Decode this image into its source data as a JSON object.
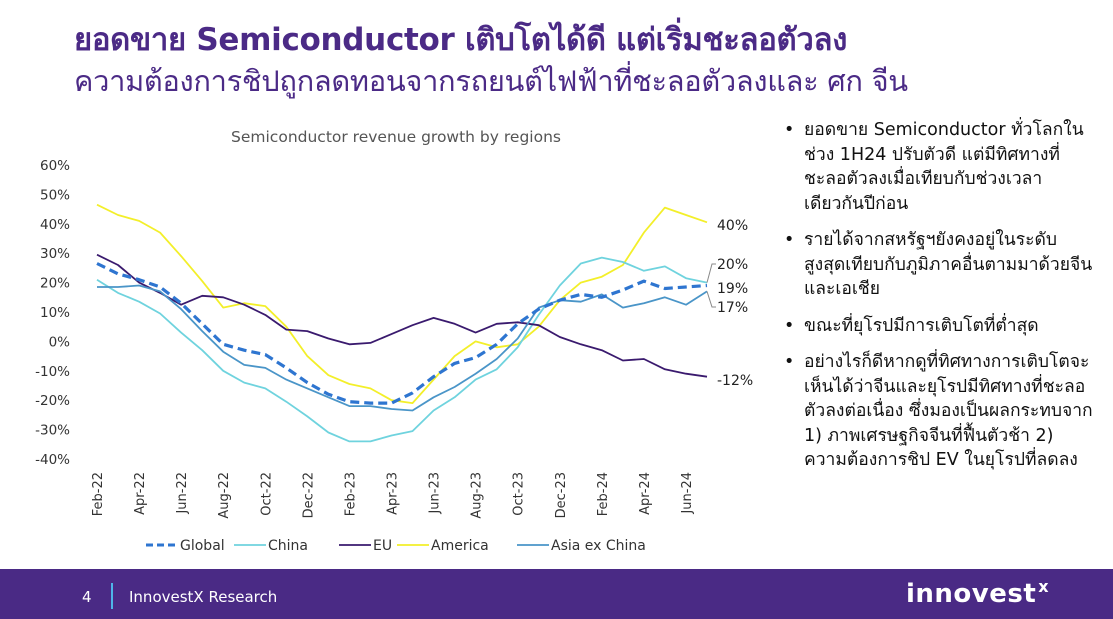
{
  "slide": {
    "title": "ยอดขาย Semiconductor เติบโตได้ดี แต่เริ่มชะลอตัวลง",
    "subtitle": "ความต้องการชิปถูกลดทอนจากรถยนต์ไฟฟ้าที่ชะลอตัวลงและ ศก จีน"
  },
  "bullets": [
    "ยอดขาย Semiconductor ทั่วโลกในช่วง 1H24 ปรับตัวดี แต่มีทิศทางที่ชะลอตัวลงเมื่อเทียบกับช่วงเวลาเดียวกันปีก่อน",
    "รายได้จากสหรัฐฯยังคงอยู่ในระดับสูงสุดเทียบกับภูมิภาคอื่นตามมาด้วยจีนและเอเชีย",
    "ขณะที่ยุโรปมีการเติบโตที่ต่ำสุด",
    "อย่างไรก็ดีหากดูที่ทิศทางการเติบโตจะเห็นได้ว่าจีนและยุโรปมีทิศทางที่ชะลอตัวลงต่อเนื่อง ซึ่งมองเป็นผลกระทบจาก 1) ภาพเศรษฐกิจจีนที่ฟื้นตัวช้า 2) ความต้องการชิป EV ในยุโรปที่ลดลง"
  ],
  "footer": {
    "page": "4",
    "brand": "InnovestX Research",
    "logo": "innovest",
    "logo_mark": "x"
  },
  "chart_data": {
    "type": "line",
    "title": "Semiconductor revenue growth by regions",
    "xlabel": "",
    "ylabel": "",
    "ylim": [
      -40,
      60
    ],
    "yticks": [
      -40,
      -30,
      -20,
      -10,
      0,
      10,
      20,
      30,
      40,
      50,
      60
    ],
    "ytick_labels": [
      "-40%",
      "-30%",
      "-20%",
      "-10%",
      "0%",
      "10%",
      "20%",
      "30%",
      "40%",
      "50%",
      "60%"
    ],
    "x": [
      "Feb-22",
      "Mar-22",
      "Apr-22",
      "May-22",
      "Jun-22",
      "Jul-22",
      "Aug-22",
      "Sep-22",
      "Oct-22",
      "Nov-22",
      "Dec-22",
      "Jan-23",
      "Feb-23",
      "Mar-23",
      "Apr-23",
      "May-23",
      "Jun-23",
      "Jul-23",
      "Aug-23",
      "Sep-23",
      "Oct-23",
      "Nov-23",
      "Dec-23",
      "Jan-24",
      "Feb-24",
      "Mar-24",
      "Apr-24",
      "May-24",
      "Jun-24",
      "Jul-24"
    ],
    "xtick_labels": [
      "Feb-22",
      "Apr-22",
      "Jun-22",
      "Aug-22",
      "Oct-22",
      "Dec-22",
      "Feb-23",
      "Apr-23",
      "Jun-23",
      "Aug-23",
      "Oct-23",
      "Dec-23",
      "Feb-24",
      "Apr-24",
      "Jun-24"
    ],
    "legend_position": "bottom",
    "grid": false,
    "series": [
      {
        "name": "Global",
        "color": "#2e75d0",
        "dashed": true,
        "values": [
          26.5,
          23,
          21,
          18.5,
          13,
          6,
          -1,
          -3,
          -4.5,
          -9,
          -14,
          -18,
          -20.5,
          -21,
          -21,
          -17.5,
          -12,
          -7.5,
          -5.5,
          -1,
          6,
          11,
          14,
          16,
          15,
          17.5,
          20.5,
          18,
          18.5,
          19
        ]
      },
      {
        "name": "China",
        "color": "#6fd3de",
        "dashed": false,
        "values": [
          21,
          16.5,
          13.5,
          9.5,
          3,
          -3,
          -10,
          -14,
          -16,
          -20.5,
          -25.5,
          -31,
          -34,
          -34,
          -32,
          -30.5,
          -23.5,
          -19,
          -13,
          -9.5,
          -2,
          9,
          19,
          26.5,
          28.5,
          27,
          24,
          25.5,
          21.5,
          20
        ]
      },
      {
        "name": "EU",
        "color": "#3a1a6e",
        "dashed": false,
        "values": [
          29.5,
          26,
          20,
          16.5,
          12.5,
          15.5,
          15,
          12.5,
          9,
          4,
          3.5,
          1,
          -1,
          -0.5,
          2.5,
          5.5,
          8,
          6,
          3,
          6,
          6.5,
          5.5,
          1.5,
          -1,
          -3,
          -6.5,
          -6,
          -9.5,
          -11,
          -12
        ]
      },
      {
        "name": "America",
        "color": "#f3ef2a",
        "dashed": false,
        "values": [
          46.5,
          43,
          41,
          37,
          29,
          20.5,
          11.5,
          13,
          12,
          5,
          -5,
          -11.5,
          -14.5,
          -16,
          -20,
          -21,
          -13,
          -5,
          0,
          -2,
          -1,
          5,
          14,
          20,
          22,
          26,
          37,
          45.5,
          43,
          40.5
        ]
      },
      {
        "name": "Asia ex China",
        "color": "#4a95c8",
        "dashed": false,
        "values": [
          18.5,
          18.5,
          19,
          17,
          11,
          3.5,
          -3.5,
          -8,
          -9,
          -13,
          -16,
          -19,
          -22,
          -22,
          -23,
          -23.5,
          -19,
          -15.5,
          -11,
          -6,
          1,
          11.5,
          14,
          13.5,
          16,
          11.5,
          13,
          15,
          12.5,
          17
        ]
      }
    ],
    "end_labels": [
      {
        "series": "America",
        "text": "40%"
      },
      {
        "series": "China",
        "text": "20%"
      },
      {
        "series": "Global",
        "text": "19%"
      },
      {
        "series": "Asia ex China",
        "text": "17%"
      },
      {
        "series": "EU",
        "text": "-12%"
      }
    ]
  }
}
